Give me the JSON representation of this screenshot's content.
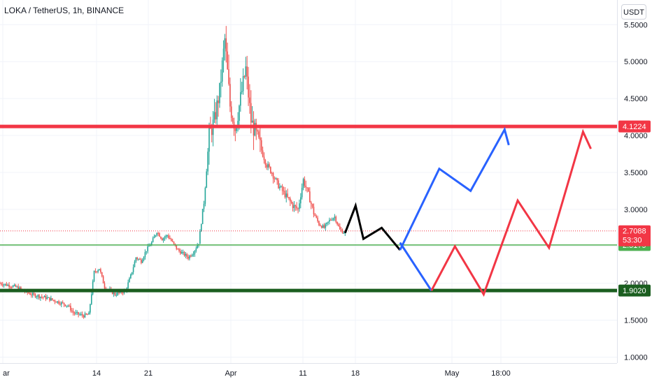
{
  "header": {
    "symbol_title": "LOKA / TetherUS, 1h, BINANCE",
    "unit": "USDT"
  },
  "colors": {
    "up": "#26a69a",
    "down": "#ef5350",
    "resistance": "#f23645",
    "support_strong": "#1b5e20",
    "support_light": "#4caf50",
    "current_price": "#f23645",
    "path_black": "#000000",
    "path_blue": "#2962ff",
    "path_red": "#f23645"
  },
  "chart_data": {
    "type": "candlestick",
    "title": "LOKA / TetherUS, 1h, BINANCE",
    "ylim": [
      0.92,
      5.55
    ],
    "y_ticks": [
      "1.0000",
      "1.5000",
      "2.0000",
      "2.5000",
      "3.0000",
      "3.5000",
      "4.0000",
      "4.5000",
      "5.0000",
      "5.5000"
    ],
    "y_tick_values": [
      1.0,
      1.5,
      2.0,
      2.5,
      3.0,
      3.5,
      4.0,
      4.5,
      5.0,
      5.5
    ],
    "x_ticks": [
      "ar",
      "14",
      "21",
      "Apr",
      "11",
      "18",
      "May",
      "18:00"
    ],
    "price_series": {
      "name": "LOKA/USDT",
      "points": [
        [
          0,
          2.0
        ],
        [
          3,
          1.95
        ],
        [
          6,
          1.85
        ],
        [
          9,
          1.8
        ],
        [
          11,
          1.75
        ],
        [
          13,
          1.7
        ],
        [
          14,
          1.6
        ],
        [
          16,
          1.56
        ],
        [
          17,
          1.58
        ],
        [
          18,
          2.15
        ],
        [
          19,
          2.2
        ],
        [
          20,
          1.95
        ],
        [
          22,
          1.85
        ],
        [
          24,
          1.9
        ],
        [
          25,
          2.1
        ],
        [
          26,
          2.35
        ],
        [
          27,
          2.3
        ],
        [
          28,
          2.45
        ],
        [
          29,
          2.55
        ],
        [
          30,
          2.7
        ],
        [
          31,
          2.6
        ],
        [
          32,
          2.65
        ],
        [
          33,
          2.55
        ],
        [
          34,
          2.45
        ],
        [
          35,
          2.4
        ],
        [
          36,
          2.35
        ],
        [
          37,
          2.42
        ],
        [
          38,
          2.55
        ],
        [
          39,
          3.1
        ],
        [
          40,
          4.0
        ],
        [
          41,
          4.2
        ],
        [
          42,
          4.6
        ],
        [
          43,
          5.3
        ],
        [
          44,
          4.4
        ],
        [
          45,
          4.1
        ],
        [
          46,
          4.5
        ],
        [
          47,
          4.9
        ],
        [
          48,
          4.2
        ],
        [
          49,
          4.0
        ],
        [
          50,
          3.8
        ],
        [
          51,
          3.6
        ],
        [
          52,
          3.5
        ],
        [
          53,
          3.35
        ],
        [
          54,
          3.25
        ],
        [
          55,
          3.15
        ],
        [
          56,
          3.05
        ],
        [
          57,
          3.0
        ],
        [
          58,
          3.4
        ],
        [
          59,
          3.2
        ],
        [
          60,
          2.95
        ],
        [
          61,
          2.8
        ],
        [
          62,
          2.75
        ],
        [
          63,
          2.85
        ],
        [
          64,
          2.9
        ],
        [
          65,
          2.72
        ],
        [
          66,
          2.68
        ]
      ]
    },
    "price_lines": [
      {
        "value": 4.1224,
        "label": "4.1224",
        "style": "resistance"
      },
      {
        "value": 2.5179,
        "label": "2.5179",
        "style": "support_light"
      },
      {
        "value": 1.902,
        "label": "1.9020",
        "style": "support_strong"
      }
    ],
    "current_price": {
      "value": 2.7088,
      "label": "2.7088",
      "countdown": "53:30"
    },
    "projections": [
      {
        "name": "",
        "style": "path_black",
        "points": [
          [
            66,
            2.68
          ],
          [
            68,
            3.05
          ],
          [
            69.5,
            2.6
          ],
          [
            73,
            2.75
          ],
          [
            76.5,
            2.45
          ]
        ]
      },
      {
        "name": "",
        "style": "path_blue",
        "points": [
          [
            76.5,
            2.45
          ],
          [
            84,
            3.55
          ],
          [
            90,
            3.25
          ],
          [
            96.5,
            4.08
          ],
          [
            97.3,
            3.87
          ]
        ]
      },
      {
        "name": "",
        "style": "path_blue",
        "points": [
          [
            76.5,
            2.55
          ],
          [
            82.5,
            1.9
          ]
        ]
      },
      {
        "name": "",
        "style": "path_red",
        "points": [
          [
            82.5,
            1.9
          ],
          [
            87,
            2.5
          ],
          [
            92.5,
            1.85
          ],
          [
            99,
            3.12
          ],
          [
            105,
            2.48
          ],
          [
            111.5,
            4.05
          ],
          [
            113,
            3.82
          ]
        ]
      }
    ]
  }
}
